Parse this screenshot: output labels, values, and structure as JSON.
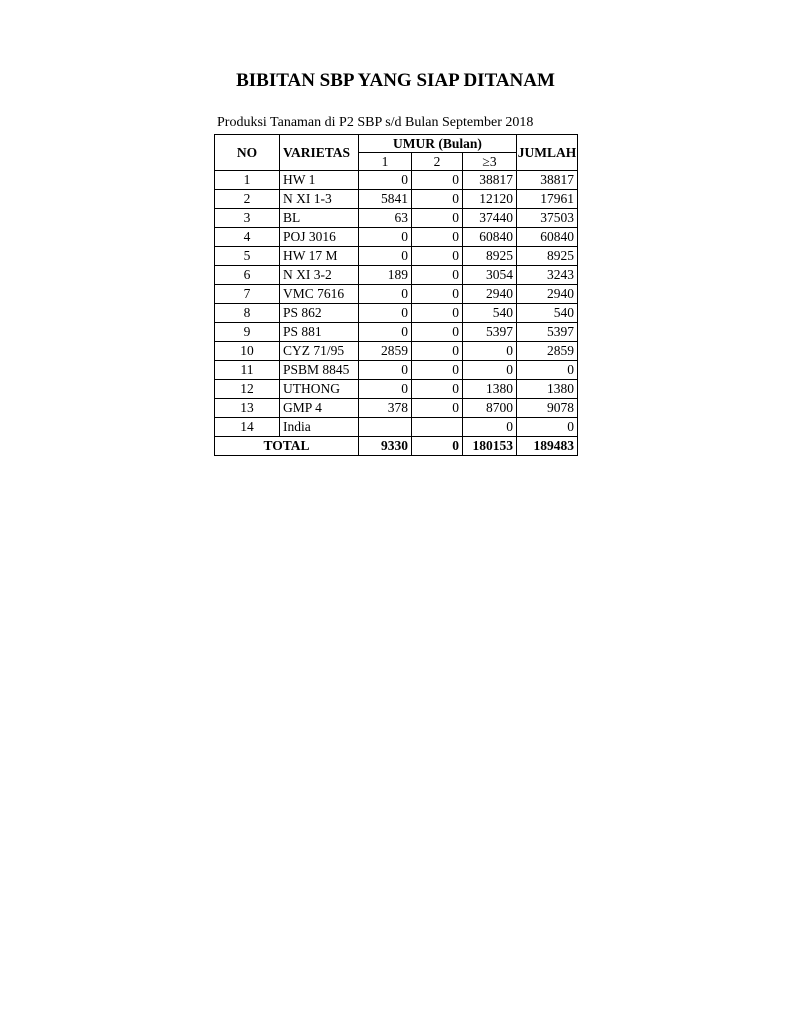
{
  "title": "BIBITAN SBP YANG SIAP DITANAM",
  "subtitle": "Produksi Tanaman di P2 SBP s/d Bulan September 2018",
  "table": {
    "headers": {
      "no": "NO",
      "varietas": "VARIETAS",
      "umur": "UMUR (Bulan)",
      "umur_sub": [
        "1",
        "2",
        "≥3"
      ],
      "jumlah": "JUMLAH"
    },
    "rows": [
      [
        "1",
        "HW 1",
        "0",
        "0",
        "38817",
        "38817"
      ],
      [
        "2",
        "N XI 1-3",
        "5841",
        "0",
        "12120",
        "17961"
      ],
      [
        "3",
        "BL",
        "63",
        "0",
        "37440",
        "37503"
      ],
      [
        "4",
        "POJ 3016",
        "0",
        "0",
        "60840",
        "60840"
      ],
      [
        "5",
        "HW 17 M",
        "0",
        "0",
        "8925",
        "8925"
      ],
      [
        "6",
        "N XI 3-2",
        "189",
        "0",
        "3054",
        "3243"
      ],
      [
        "7",
        "VMC 7616",
        "0",
        "0",
        "2940",
        "2940"
      ],
      [
        "8",
        "PS 862",
        "0",
        "0",
        "540",
        "540"
      ],
      [
        "9",
        "PS 881",
        "0",
        "0",
        "5397",
        "5397"
      ],
      [
        "10",
        "CYZ 71/95",
        "2859",
        "0",
        "0",
        "2859"
      ],
      [
        "11",
        "PSBM 8845",
        "0",
        "0",
        "0",
        "0"
      ],
      [
        "12",
        "UTHONG",
        "0",
        "0",
        "1380",
        "1380"
      ],
      [
        "13",
        "GMP 4",
        "378",
        "0",
        "8700",
        "9078"
      ],
      [
        "14",
        "India",
        "",
        "",
        "0",
        "0"
      ]
    ],
    "total": {
      "label": "TOTAL",
      "values": [
        "9330",
        "0",
        "180153",
        "189483"
      ]
    }
  }
}
